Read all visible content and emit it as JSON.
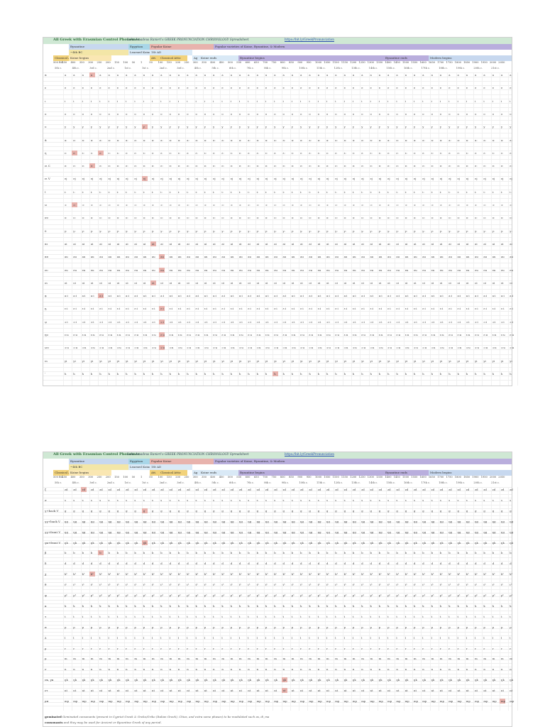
{
  "sheet": {
    "title": "All Greek with Erasmian Control Phonemes",
    "author": "Luke Amadeus Ranieri's GREEK PRONUNCIATION CHRONOLOGY Spreadsheet",
    "url": "https://bit.ly/GreekPronunciation",
    "bands_row1": [
      {
        "label": "Byzantine",
        "color": "#c7d8ef"
      },
      {
        "label": "Egyptian",
        "color": "#a8d6e8"
      },
      {
        "label": "Popular Koine",
        "color": "#e8b3ad"
      },
      {
        "label": "Popular varieties of Koine, Byzantine, & Modern",
        "color": "#b9aedd"
      }
    ],
    "bands_row2": [
      {
        "label": "~4th BC",
        "color": "#f3e6a7"
      },
      {
        "label": "Learned Koine",
        "color": "#d9e9f6"
      },
      {
        "label": "1St AD",
        "color": "#d9e9f6"
      }
    ],
    "bands_row3": [
      {
        "label": "Classical Attic",
        "color": "#f2d27a"
      },
      {
        "label": "Koine begins",
        "color": "#fae7b3"
      },
      {
        "label": "Att.",
        "color": "#f2d27a"
      },
      {
        "label": "Classical Attic",
        "color": "#f2d27a"
      },
      {
        "label": "Ag",
        "color": "#d9e9f6"
      },
      {
        "label": "Koine ends",
        "color": "#d9e9f6"
      },
      {
        "label": "Byzantine begins",
        "color": "#b9aedd"
      },
      {
        "label": "Byzantine ends",
        "color": "#b9aedd"
      },
      {
        "label": "Modern begins",
        "color": "#c7d8ef"
      }
    ],
    "years": [
      "500 BC",
      "450",
      "400",
      "350",
      "300",
      "250",
      "200",
      "150",
      "100",
      "50",
      "1",
      "50",
      "100",
      "150",
      "200",
      "250",
      "300",
      "350",
      "400",
      "450",
      "500",
      "550",
      "600",
      "650",
      "700",
      "750",
      "800",
      "850",
      "900",
      "950",
      "1000",
      "1050",
      "1100",
      "1150",
      "1200",
      "1250",
      "1300",
      "1350",
      "1400",
      "1450",
      "1500",
      "1550",
      "1600",
      "1650",
      "1700",
      "1750",
      "1800",
      "1850",
      "1900",
      "1950",
      "2000",
      "2050"
    ],
    "centuries": [
      "5th c.",
      "4th c.",
      "3rd c.",
      "2nd c.",
      "1st c.",
      "1st c.",
      "2nd c.",
      "3rd c.",
      "4th c.",
      "5th c.",
      "6th c.",
      "7th c.",
      "8th c.",
      "9th c.",
      "10th c.",
      "11th c.",
      "12th c.",
      "13th c.",
      "14th c.",
      "15th c.",
      "16th c.",
      "17th c.",
      "18th c.",
      "19th c.",
      "20th c.",
      "21st c."
    ]
  },
  "top_rows": [
    {
      "label": "α",
      "sym": "a"
    },
    {
      "label": "ε",
      "sym": "e"
    },
    {
      "label": "ι",
      "sym": "i"
    },
    {
      "label": "ο",
      "sym": "o"
    },
    {
      "label": "υ",
      "sym": "y"
    },
    {
      "label": "ᾱ",
      "sym": "aː"
    },
    {
      "label": "η",
      "sym": "ɛː"
    },
    {
      "label": "ει C",
      "sym": "eː"
    },
    {
      "label": "ει V",
      "sym": "ej"
    },
    {
      "label": "ῑ",
      "sym": "iː"
    },
    {
      "label": "ω",
      "sym": "ɔː"
    },
    {
      "label": "ου",
      "sym": "oː"
    },
    {
      "label": "ῡ",
      "sym": "yː"
    },
    {
      "label": "αι",
      "sym": "ai"
    },
    {
      "label": "αυ",
      "sym": "au"
    },
    {
      "label": "ευ",
      "sym": "eu"
    },
    {
      "label": "οι",
      "sym": "oi"
    },
    {
      "label": "ᾳ",
      "sym": "aːi"
    },
    {
      "label": "ῃ",
      "sym": "ɛːi"
    },
    {
      "label": "ῳ",
      "sym": "ɔːi"
    },
    {
      "label": "ηυ",
      "sym": "ɛːu"
    },
    {
      "label": "ωυ",
      "sym": "ɔːu"
    },
    {
      "label": "υι",
      "sym": "yi"
    },
    {
      "label": "ʽ",
      "sym": "h"
    }
  ],
  "bottom_rows": [
    {
      "label": "ζ",
      "sym": "zd"
    },
    {
      "label": "σ",
      "sym": "s"
    },
    {
      "label": "γ+back V",
      "sym": "g"
    },
    {
      "label": "γγ+back V",
      "sym": "ŋg"
    },
    {
      "label": "γγ+front V",
      "sym": "ŋg"
    },
    {
      "label": "γκ+front V",
      "sym": "ŋk"
    },
    {
      "label": "β",
      "sym": "b"
    },
    {
      "label": "δ",
      "sym": "d"
    },
    {
      "label": "χ",
      "sym": "kʰ"
    },
    {
      "label": "θ",
      "sym": "tʰ"
    },
    {
      "label": "φ",
      "sym": "pʰ"
    },
    {
      "label": "κ",
      "sym": "k"
    },
    {
      "label": "τ",
      "sym": "t"
    },
    {
      "label": "π",
      "sym": "p"
    },
    {
      "label": "λ",
      "sym": "l"
    },
    {
      "label": "ρ",
      "sym": "r"
    },
    {
      "label": "μ",
      "sym": "m"
    },
    {
      "label": "ν",
      "sym": "n"
    },
    {
      "label": "νκ, γκ",
      "sym": "ŋk"
    },
    {
      "label": "ντ",
      "sym": "nt"
    },
    {
      "label": "μπ",
      "sym": "mp"
    }
  ],
  "notes": {
    "geminated_label": "geminated",
    "geminated_text": "Geminated consonants (present in Cypriot Greek & Greko/Griko (Italian Greek), Chios, and extra some phases) to be modulated such as, di_ma",
    "consonants_label": "consonants",
    "consonants_text": "and they may be used for Ancient or Byzantine Greek of any period."
  }
}
